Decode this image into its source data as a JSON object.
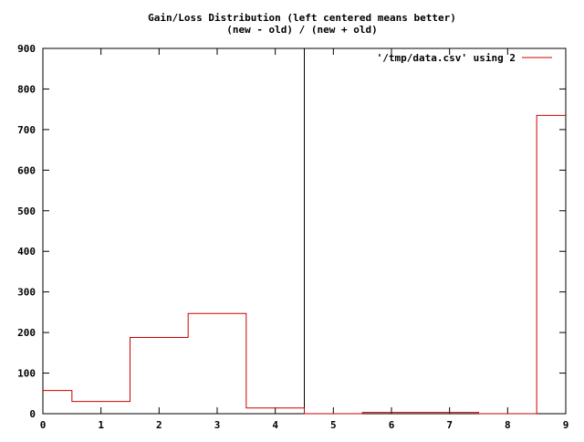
{
  "chart_data": {
    "type": "histogram-step",
    "title": "Gain/Loss Distribution (left centered means better)",
    "subtitle": "(new - old) / (new + old)",
    "xlim": [
      0,
      9
    ],
    "ylim": [
      0,
      900
    ],
    "x_ticks": [
      0,
      1,
      2,
      3,
      4,
      5,
      6,
      7,
      8,
      9
    ],
    "y_ticks": [
      0,
      100,
      200,
      300,
      400,
      500,
      600,
      700,
      800,
      900
    ],
    "grid": false,
    "legend_position": "top-right",
    "vertical_marker_x": 4.5,
    "series": [
      {
        "name": "'/tmp/data.csv' using 2",
        "x": [
          0,
          1,
          2,
          3,
          4,
          5,
          6,
          7,
          8,
          9
        ],
        "values": [
          57,
          30,
          188,
          247,
          14,
          0,
          3,
          3,
          0,
          735
        ]
      }
    ]
  },
  "colors": {
    "series": "#cc0000",
    "axis": "#000000",
    "background": "#ffffff"
  }
}
